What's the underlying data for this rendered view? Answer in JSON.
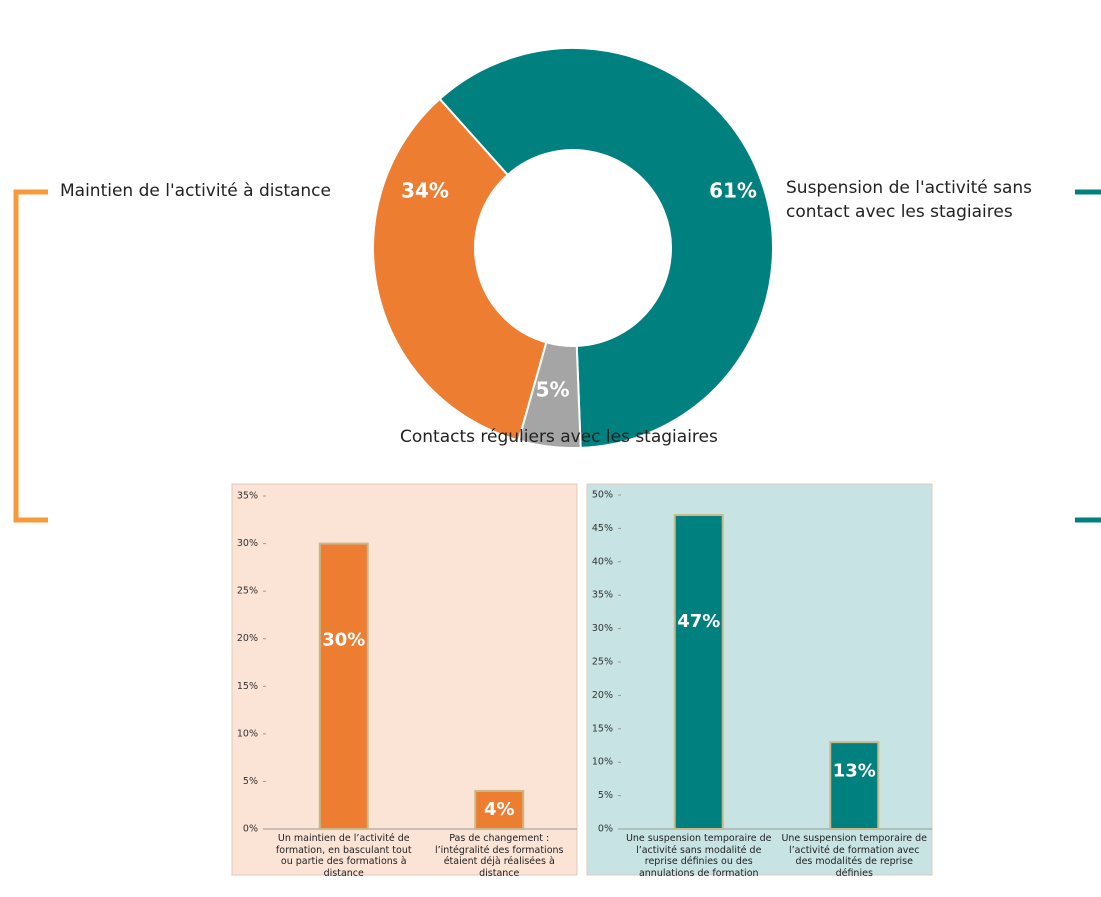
{
  "chart_data": [
    {
      "type": "donut",
      "categories": [
        "Suspension de l'activité sans contact avec les stagiaires",
        "Contacts réguliers avec les stagiaires",
        "Maintien de l'activité à distance"
      ],
      "values": [
        61,
        5,
        34
      ],
      "value_labels": [
        "61%",
        "5%",
        "34%"
      ],
      "colors": [
        "#00807f",
        "#a5a5a5",
        "#ed7d31"
      ]
    },
    {
      "type": "bar",
      "categories": [
        "Un maintien de l’activité de formation, en basculant tout ou partie des formations à distance",
        "Pas de changement : l’intégralité des formations étaient déjà réalisées à distance"
      ],
      "values": [
        30,
        4
      ],
      "value_labels": [
        "30%",
        "4%"
      ],
      "color": "#ed7d31",
      "background": "#fbe3d6",
      "ylim": [
        0,
        35
      ],
      "yticks": [
        {
          "value": 0,
          "label": "0%"
        },
        {
          "value": 5,
          "label": "5%"
        },
        {
          "value": 10,
          "label": "10%"
        },
        {
          "value": 15,
          "label": "15%"
        },
        {
          "value": 20,
          "label": "20%"
        },
        {
          "value": 25,
          "label": "25%"
        },
        {
          "value": 30,
          "label": "30%"
        },
        {
          "value": 35,
          "label": "35%"
        }
      ]
    },
    {
      "type": "bar",
      "categories": [
        "Une suspension temporaire de l’activité sans modalité de reprise définies ou des annulations de formation",
        "Une suspension temporaire de l’activité de formation avec des modalités de reprise définies"
      ],
      "values": [
        47,
        13
      ],
      "value_labels": [
        "47%",
        "13%"
      ],
      "color": "#00807f",
      "background": "#c8e3e4",
      "ylim": [
        0,
        50
      ],
      "yticks": [
        {
          "value": 0,
          "label": "0%"
        },
        {
          "value": 5,
          "label": "5%"
        },
        {
          "value": 10,
          "label": "10%"
        },
        {
          "value": 15,
          "label": "15%"
        },
        {
          "value": 20,
          "label": "20%"
        },
        {
          "value": 25,
          "label": "25%"
        },
        {
          "value": 30,
          "label": "30%"
        },
        {
          "value": 35,
          "label": "35%"
        },
        {
          "value": 40,
          "label": "40%"
        },
        {
          "value": 45,
          "label": "45%"
        },
        {
          "value": 50,
          "label": "50%"
        }
      ]
    }
  ]
}
